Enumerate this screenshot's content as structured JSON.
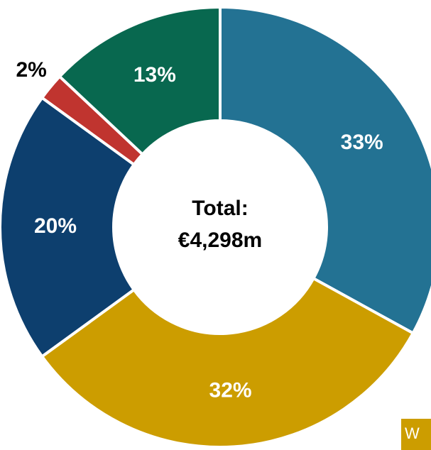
{
  "chart_data": {
    "type": "pie",
    "center_label": [
      "Total:",
      "€4,298m"
    ],
    "categories": [
      null,
      null,
      null,
      null,
      null
    ],
    "values": [
      33,
      32,
      20,
      2,
      13
    ],
    "value_labels": [
      "33%",
      "32%",
      "20%",
      "2%",
      "13%"
    ],
    "colors": [
      "#237293",
      "#cc9d00",
      "#0d3f6e",
      "#c0342f",
      "#08684f"
    ],
    "clipped_legend": {
      "label": "W",
      "color": "#cc9d00"
    }
  }
}
